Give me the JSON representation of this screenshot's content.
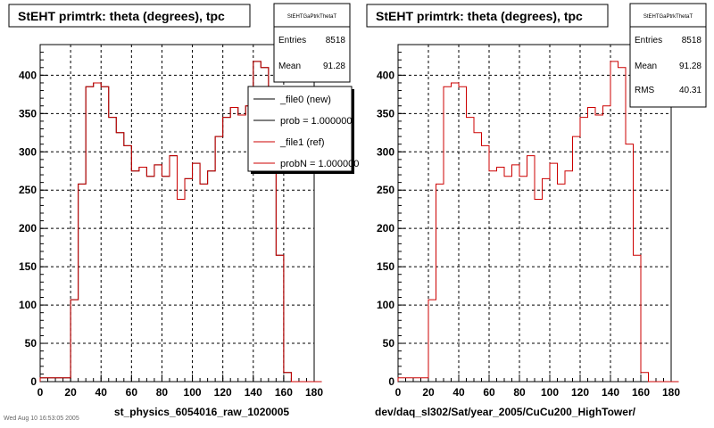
{
  "footer_stamp": "Wed Aug 10 16:53:05 2005",
  "chart_data": [
    {
      "type": "bar",
      "title": "StEHT primtrk: theta (degrees), tpc",
      "xlabel": "st_physics_6054016_raw_1020005",
      "ylabel": "",
      "xlim": [
        0,
        180
      ],
      "ylim": [
        0,
        440
      ],
      "grid": true,
      "bin_width": 5,
      "bin_edges_start": 0,
      "x_ticks": [
        0,
        20,
        40,
        60,
        80,
        100,
        120,
        140,
        160,
        180
      ],
      "y_ticks": [
        0,
        50,
        100,
        150,
        200,
        250,
        300,
        350,
        400
      ],
      "series": [
        {
          "name": "_file0 (new)",
          "color": "#000000",
          "values": [
            5,
            5,
            5,
            5,
            107,
            258,
            385,
            390,
            385,
            345,
            325,
            308,
            275,
            280,
            268,
            283,
            268,
            295,
            238,
            265,
            285,
            258,
            275,
            320,
            345,
            358,
            348,
            360,
            418,
            410,
            310,
            165,
            12,
            0,
            0,
            0,
            0
          ]
        },
        {
          "name": "_file1 (ref)",
          "color": "#cc0000",
          "values": [
            5,
            5,
            5,
            5,
            107,
            258,
            385,
            390,
            385,
            345,
            325,
            308,
            275,
            280,
            268,
            283,
            268,
            295,
            238,
            265,
            285,
            258,
            275,
            320,
            345,
            358,
            348,
            360,
            418,
            410,
            310,
            165,
            12,
            0,
            0,
            0,
            0
          ]
        }
      ],
      "stats": {
        "title": "StEHTGaPtrkThetaT",
        "rows": [
          {
            "label": "Entries",
            "value": "8518"
          },
          {
            "label": "Mean",
            "value": "91.28"
          }
        ]
      },
      "legend": {
        "position": "top-right",
        "entries": [
          "_file0 (new)",
          "prob = 1.000000",
          "_file1 (ref)",
          "probN = 1.000000"
        ]
      }
    },
    {
      "type": "bar",
      "title": "StEHT primtrk: theta (degrees), tpc",
      "xlabel": "dev/daq_sl302/Sat/year_2005/CuCu200_HighTower/",
      "ylabel": "",
      "xlim": [
        0,
        180
      ],
      "ylim": [
        0,
        440
      ],
      "grid": true,
      "bin_width": 5,
      "bin_edges_start": 0,
      "x_ticks": [
        0,
        20,
        40,
        60,
        80,
        100,
        120,
        140,
        160,
        180
      ],
      "y_ticks": [
        0,
        50,
        100,
        150,
        200,
        250,
        300,
        350,
        400
      ],
      "series": [
        {
          "name": "",
          "color": "#cc0000",
          "values": [
            5,
            5,
            5,
            5,
            107,
            258,
            385,
            390,
            385,
            345,
            325,
            308,
            275,
            280,
            268,
            283,
            268,
            295,
            238,
            265,
            285,
            258,
            275,
            320,
            345,
            358,
            348,
            360,
            418,
            410,
            310,
            165,
            12,
            0,
            0,
            0,
            0
          ]
        }
      ],
      "stats": {
        "title": "StEHTGaPtrkThetaT",
        "rows": [
          {
            "label": "Entries",
            "value": "8518"
          },
          {
            "label": "Mean",
            "value": "91.28"
          },
          {
            "label": "RMS",
            "value": "40.31"
          }
        ]
      }
    }
  ]
}
